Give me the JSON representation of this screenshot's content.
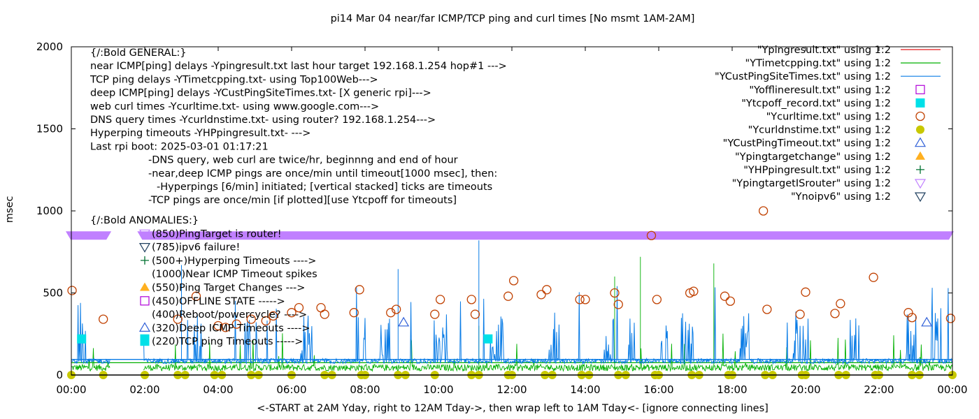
{
  "chart_data": {
    "type": "line",
    "title": "pi14 Mar 04  near/far ICMP/TCP ping and curl times [No msmt 1AM-2AM]",
    "xlabel": "<-START at 2AM Yday, right to 12AM Tday->, then wrap left to 1AM Tday<- [ignore connecting lines]",
    "ylabel": "msec",
    "xlim_hours": [
      0,
      24
    ],
    "ylim": [
      0,
      2000
    ],
    "x_ticks": [
      "00:00",
      "02:00",
      "04:00",
      "06:00",
      "08:00",
      "10:00",
      "12:00",
      "14:00",
      "16:00",
      "18:00",
      "20:00",
      "22:00",
      "00:00"
    ],
    "y_ticks": [
      0,
      500,
      1000,
      1500,
      2000
    ],
    "grid": false,
    "legend_position": "top-right",
    "general_notes": [
      "{/:Bold GENERAL:}",
      "near ICMP[ping] delays -Ypingresult.txt last hour target 192.168.1.254 hop#1 --->",
      "TCP ping delays -YTimetcpping.txt- using Top100Web--->",
      "deep ICMP[ping] delays -YCustPingSiteTimes.txt- [X generic rpi]--->",
      "web curl times -Ycurltime.txt- using www.google.com--->",
      "DNS query times -Ycurldnstime.txt- using router? 192.168.1.254--->",
      "Hyperping timeouts -YHPpingresult.txt- --->",
      "Last rpi boot: 2025-03-01 01:17:21",
      "-DNS query, web curl are twice/hr, beginnng and end of hour",
      "-near,deep ICMP pings are once/min until timeout[1000 msec], then:",
      "-Hyperpings [6/min] initiated; [vertical stacked] ticks are timeouts",
      "-TCP pings are once/min [if plotted][use Ytcpoff for timeouts]"
    ],
    "anomaly_notes": [
      {
        "text": "{/:Bold ANOMALIES:}",
        "symbol": "none"
      },
      {
        "text": "(850)PingTarget is router!",
        "symbol": "tri-down-purple"
      },
      {
        "text": "(785)ipv6 failure!",
        "symbol": "tri-down-navy"
      },
      {
        "text": "(500+)Hyperping Timeouts ---->",
        "symbol": "plus-green"
      },
      {
        "text": "(1000)Near ICMP Timeout spikes",
        "symbol": "none"
      },
      {
        "text": "(550)Ping Target Changes --->",
        "symbol": "tri-up-orange"
      },
      {
        "text": "(450)OFFLINE STATE ----->",
        "symbol": "square-open-purple"
      },
      {
        "text": "(400)Reboot/powercycle? ---->",
        "symbol": "circle-open-brown"
      },
      {
        "text": "(320)Deep ICMP Timeouts ---->",
        "symbol": "tri-up-blue"
      },
      {
        "text": "(220)TCP ping Timeouts ----->",
        "symbol": "square-cyan"
      }
    ],
    "legend": [
      {
        "label": "\"Ypingresult.txt\" using 1:2",
        "style": "line",
        "color": "#e41a1c"
      },
      {
        "label": "\"YTimetcpping.txt\" using 1:2",
        "style": "line",
        "color": "#00b000"
      },
      {
        "label": "\"YCustPingSiteTimes.txt\" using 1:2",
        "style": "line",
        "color": "#0a7ce6"
      },
      {
        "label": "\"Yofflineresult.txt\" using 1:2",
        "style": "square-open",
        "color": "#b000d8"
      },
      {
        "label": "\"Ytcpoff_record.txt\" using 1:2",
        "style": "square-filled",
        "color": "#00e0e8"
      },
      {
        "label": "\"Ycurltime.txt\" using 1:2",
        "style": "circle-open",
        "color": "#c04000"
      },
      {
        "label": "\"Ycurldnstime.txt\" using 1:2",
        "style": "circle-filled",
        "color": "#c8c800"
      },
      {
        "label": "\"YCustPingTimeout.txt\" using 1:2",
        "style": "tri-up-open",
        "color": "#3060d8"
      },
      {
        "label": "\"Ypingtargetchange\" using 1:2",
        "style": "tri-up-filled",
        "color": "#ffb020"
      },
      {
        "label": "\"YHPpingresult.txt\" using 1:2",
        "style": "plus",
        "color": "#007030"
      },
      {
        "label": "\"YpingtargetISrouter\" using 1:2",
        "style": "tri-down-open",
        "color": "#c080ff"
      },
      {
        "label": "\"Ynoipv6\" using 1:2",
        "style": "tri-down-open",
        "color": "#204060"
      }
    ],
    "series": [
      {
        "name": "Ycurltime.txt",
        "points": [
          [
            0.02,
            515
          ],
          [
            0.87,
            340
          ],
          [
            2.9,
            340
          ],
          [
            3.4,
            480
          ],
          [
            4.0,
            300
          ],
          [
            4.2,
            290
          ],
          [
            4.5,
            310
          ],
          [
            4.9,
            340
          ],
          [
            5.5,
            360
          ],
          [
            5.3,
            330
          ],
          [
            6.0,
            380
          ],
          [
            6.2,
            410
          ],
          [
            6.8,
            410
          ],
          [
            6.9,
            370
          ],
          [
            7.7,
            380
          ],
          [
            7.85,
            520
          ],
          [
            8.7,
            380
          ],
          [
            8.85,
            400
          ],
          [
            9.9,
            370
          ],
          [
            10.05,
            460
          ],
          [
            10.9,
            460
          ],
          [
            11.0,
            370
          ],
          [
            11.9,
            480
          ],
          [
            12.05,
            575
          ],
          [
            12.8,
            490
          ],
          [
            12.95,
            520
          ],
          [
            13.85,
            460
          ],
          [
            14.0,
            460
          ],
          [
            14.8,
            500
          ],
          [
            14.9,
            430
          ],
          [
            15.8,
            850
          ],
          [
            15.95,
            460
          ],
          [
            16.85,
            500
          ],
          [
            16.95,
            510
          ],
          [
            17.8,
            480
          ],
          [
            17.95,
            450
          ],
          [
            18.85,
            1000
          ],
          [
            18.95,
            400
          ],
          [
            19.85,
            370
          ],
          [
            20.0,
            505
          ],
          [
            20.8,
            375
          ],
          [
            20.95,
            435
          ],
          [
            21.85,
            595
          ],
          [
            22.8,
            380
          ],
          [
            22.9,
            350
          ],
          [
            23.95,
            345
          ]
        ]
      },
      {
        "name": "Ycurldnstime.txt",
        "points": [
          [
            0.0,
            0
          ],
          [
            0.87,
            0
          ],
          [
            2.0,
            0
          ],
          [
            2.9,
            0
          ],
          [
            3.1,
            0
          ],
          [
            3.9,
            0
          ],
          [
            4.1,
            0
          ],
          [
            4.9,
            0
          ],
          [
            5.1,
            0
          ],
          [
            6.0,
            0
          ],
          [
            6.9,
            0
          ],
          [
            7.1,
            0
          ],
          [
            7.9,
            0
          ],
          [
            8.0,
            0
          ],
          [
            8.9,
            0
          ],
          [
            9.1,
            0
          ],
          [
            9.9,
            0
          ],
          [
            10.9,
            0
          ],
          [
            11.1,
            0
          ],
          [
            11.9,
            0
          ],
          [
            12.0,
            0
          ],
          [
            12.9,
            0
          ],
          [
            13.1,
            0
          ],
          [
            13.9,
            0
          ],
          [
            14.1,
            0
          ],
          [
            14.9,
            0
          ],
          [
            15.1,
            0
          ],
          [
            15.9,
            0
          ],
          [
            16.0,
            0
          ],
          [
            16.9,
            0
          ],
          [
            17.1,
            0
          ],
          [
            17.9,
            0
          ],
          [
            18.0,
            0
          ],
          [
            18.9,
            0
          ],
          [
            19.1,
            0
          ],
          [
            19.9,
            0
          ],
          [
            20.0,
            0
          ],
          [
            20.9,
            0
          ],
          [
            21.1,
            0
          ],
          [
            21.9,
            0
          ],
          [
            22.0,
            0
          ],
          [
            22.9,
            0
          ],
          [
            23.1,
            0
          ],
          [
            24.0,
            0
          ]
        ]
      },
      {
        "name": "Ytcpoff_record.txt",
        "points": [
          [
            0.28,
            220
          ],
          [
            2.0,
            220
          ],
          [
            11.35,
            220
          ]
        ]
      },
      {
        "name": "YCustPingTimeout.txt",
        "points": [
          [
            9.05,
            320
          ],
          [
            23.3,
            320
          ]
        ]
      },
      {
        "name": "YpingtargetISrouter",
        "value": 850,
        "ranges_hours": [
          [
            0.0,
            1.05
          ],
          [
            1.95,
            24.0
          ]
        ]
      },
      {
        "name": "YCustPingSiteTimes.txt",
        "baseline": 85,
        "typical_peaks": [
          200,
          650
        ],
        "max_spike_hours": [
          [
            11.1,
            820
          ],
          [
            3.0,
            670
          ],
          [
            8.9,
            645
          ]
        ]
      },
      {
        "name": "YTimetcpping.txt",
        "baseline": 45,
        "max_spike_hours": [
          [
            15.5,
            720
          ],
          [
            17.5,
            680
          ],
          [
            14.8,
            600
          ],
          [
            11.1,
            300
          ]
        ]
      }
    ]
  }
}
